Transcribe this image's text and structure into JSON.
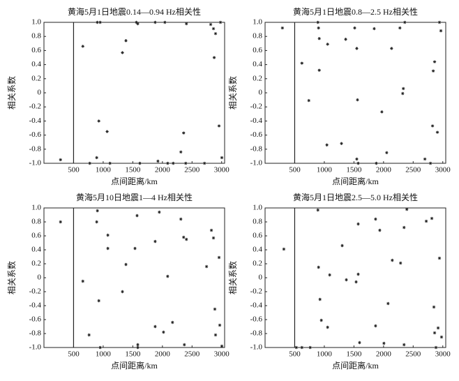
{
  "chart_data": [
    {
      "type": "scatter",
      "title": "黄海5月1日地震0.14—0.94 Hz相关性",
      "x_label": "点间距离/km",
      "y_label": "相关系数",
      "color": "#222222",
      "reference_line_x": 500,
      "xlim": [
        0,
        3050
      ],
      "ylim": [
        -1,
        1
      ],
      "xticks": [
        500,
        1000,
        1500,
        2000,
        2500,
        3000
      ],
      "yticks": [
        {
          "value": -1,
          "label": "-1.0"
        },
        -0.8,
        -0.6,
        -0.4,
        -0.2,
        0,
        0.2,
        0.4,
        0.6,
        0.8,
        {
          "value": 1,
          "label": "1.0"
        }
      ],
      "x": [
        280,
        657,
        774,
        891,
        927,
        900,
        950,
        1067,
        1115,
        1325,
        1384,
        1560,
        1584,
        1619,
        1877,
        2041,
        1924,
        2088,
        2182,
        2311,
        2358,
        2405,
        2393,
        2710,
        2815,
        2862,
        2897,
        2874,
        2956,
        2980,
        3003
      ],
      "values": [
        -0.95,
        0.66,
        -1.0,
        -0.92,
        -0.4,
        1.0,
        1.0,
        -0.55,
        -1.0,
        0.57,
        0.74,
        1.0,
        0.98,
        -1.0,
        1.0,
        1.0,
        -0.97,
        -1.0,
        -1.0,
        -0.84,
        -0.57,
        0.98,
        -1.0,
        -1.0,
        0.97,
        0.91,
        0.84,
        0.5,
        -0.47,
        1.0,
        -0.92
      ]
    },
    {
      "type": "scatter",
      "title": "黄海5月1日地震0.8—2.5 Hz相关性",
      "x_label": "点间距离/km",
      "y_label": "相关系数",
      "color": "#222222",
      "reference_line_x": 500,
      "xlim": [
        0,
        3050
      ],
      "ylim": [
        -1,
        1
      ],
      "xticks": [
        500,
        1000,
        1500,
        2000,
        2500,
        3000
      ],
      "yticks": [
        {
          "value": -1,
          "label": "-1.0"
        },
        -0.8,
        -0.6,
        -0.4,
        -0.2,
        0,
        0.2,
        0.4,
        0.6,
        0.8,
        {
          "value": 1,
          "label": "1.0"
        }
      ],
      "x": [
        293,
        622,
        739,
        892,
        903,
        915,
        915,
        1044,
        1056,
        1290,
        1361,
        1513,
        1548,
        1560,
        1548,
        1572,
        1842,
        1877,
        1971,
        2053,
        2135,
        2276,
        2334,
        2323,
        2358,
        2698,
        2792,
        2827,
        2839,
        2862,
        2909,
        2944,
        2968
      ],
      "values": [
        0.92,
        0.42,
        -0.11,
        1.0,
        0.92,
        0.77,
        0.32,
        -0.74,
        0.69,
        -0.72,
        0.76,
        0.92,
        0.63,
        -0.1,
        -0.94,
        -1.0,
        0.91,
        -1.0,
        -0.27,
        -0.85,
        0.63,
        0.92,
        0.06,
        -0.01,
        1.0,
        -0.94,
        -1.0,
        -0.47,
        0.31,
        0.44,
        -0.56,
        1.0,
        0.88
      ]
    },
    {
      "type": "scatter",
      "title": "黄海5月10日地震1—4 Hz相关性",
      "x_label": "点间距离/km",
      "y_label": "相关系数",
      "color": "#222222",
      "reference_line_x": 500,
      "xlim": [
        0,
        3050
      ],
      "ylim": [
        -1,
        1
      ],
      "xticks": [
        500,
        1000,
        1500,
        2000,
        2500,
        3000
      ],
      "yticks": [
        {
          "value": -1,
          "label": "-1.0"
        },
        -0.8,
        -0.6,
        -0.4,
        -0.2,
        0,
        0.2,
        0.4,
        0.6,
        0.8,
        {
          "value": 1,
          "label": "1.0"
        }
      ],
      "x": [
        280,
        657,
        762,
        891,
        903,
        927,
        950,
        1079,
        1079,
        1325,
        1384,
        1537,
        1572,
        1584,
        1584,
        1877,
        1877,
        1947,
        2018,
        2088,
        2170,
        2311,
        2358,
        2405,
        2370,
        2745,
        2827,
        2862,
        2885,
        2897,
        2956,
        2968,
        3003
      ],
      "values": [
        0.8,
        -0.05,
        -0.82,
        0.8,
        0.96,
        -0.33,
        -1.0,
        0.61,
        0.42,
        -0.2,
        0.19,
        0.42,
        0.89,
        -0.96,
        -1.0,
        -0.7,
        0.52,
        0.94,
        -0.78,
        0.02,
        -0.64,
        0.84,
        0.58,
        0.55,
        -0.96,
        0.16,
        0.68,
        0.57,
        -0.45,
        -0.82,
        0.29,
        -0.68,
        -0.98
      ]
    },
    {
      "type": "scatter",
      "title": "黄海5月1日地震2.5—5.0 Hz相关性",
      "x_label": "点间距离/km",
      "y_label": "相关系数",
      "color": "#222222",
      "reference_line_x": 500,
      "xlim": [
        0,
        3050
      ],
      "ylim": [
        -1,
        1
      ],
      "xticks": [
        500,
        1000,
        1500,
        2000,
        2500,
        3000
      ],
      "yticks": [
        {
          "value": -1,
          "label": "-1.0"
        },
        -0.8,
        -0.6,
        -0.4,
        -0.2,
        0,
        0.2,
        0.4,
        0.6,
        0.8,
        {
          "value": 1,
          "label": "1.0"
        }
      ],
      "x": [
        317,
        528,
        622,
        762,
        892,
        903,
        927,
        950,
        1056,
        1091,
        1302,
        1372,
        1537,
        1572,
        1572,
        1595,
        1865,
        1865,
        1936,
        2006,
        2076,
        2147,
        2287,
        2346,
        2346,
        2393,
        2721,
        2815,
        2850,
        2862,
        2885,
        2921,
        2944,
        2979
      ],
      "values": [
        0.41,
        -1.0,
        -1.0,
        -1.0,
        0.97,
        0.15,
        -0.31,
        -0.61,
        -0.71,
        0.04,
        0.46,
        -0.03,
        -0.06,
        0.77,
        0.05,
        -0.93,
        0.84,
        -0.69,
        0.68,
        -0.94,
        -0.37,
        0.25,
        0.21,
        0.72,
        -0.96,
        0.98,
        0.81,
        0.85,
        -0.42,
        -0.79,
        -1.0,
        -0.72,
        0.28,
        -0.85
      ]
    }
  ]
}
